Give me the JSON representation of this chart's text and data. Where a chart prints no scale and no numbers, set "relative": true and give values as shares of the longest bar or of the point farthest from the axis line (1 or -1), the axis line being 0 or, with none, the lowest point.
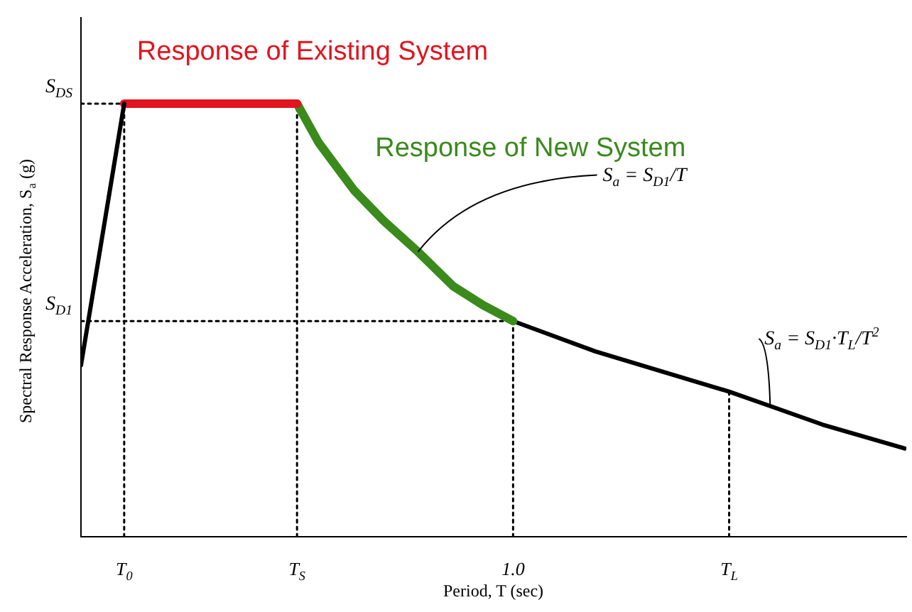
{
  "chart_data": {
    "type": "line",
    "relative": true,
    "xlabel": "Period, T (sec)",
    "ylabel": "Spectral Response Acceleration, S$_{a}$ (g)",
    "xlim": [
      0,
      1.91
    ],
    "xticks": [
      {
        "value": 0.1,
        "label": "T$_{0}$"
      },
      {
        "value": 0.5,
        "label": "T$_{S}$"
      },
      {
        "value": 1,
        "label": "1.0"
      },
      {
        "value": 1.5,
        "label": "T$_{L}$"
      }
    ],
    "series": [
      {
        "color": "#000000",
        "x": [
          0,
          0.1
        ],
        "values": [
          0.396,
          1
        ]
      },
      {
        "name": "Response of Existing System",
        "color": "#e0151f",
        "x": [
          0.1,
          0.5
        ],
        "values": [
          1,
          1
        ]
      },
      {
        "name": "Response of New System",
        "color": "#3a8a1c",
        "x": [
          0.5,
          0.55,
          0.632,
          0.7,
          0.78,
          0.862,
          0.93,
          1
        ],
        "values": [
          1,
          0.91,
          0.8,
          0.73,
          0.658,
          0.578,
          0.535,
          0.498
        ]
      },
      {
        "color": "#000000",
        "x": [
          1,
          1.19,
          1.5,
          1.6,
          1.716,
          1.906
        ],
        "values": [
          0.498,
          0.428,
          0.335,
          0.3,
          0.259,
          0.204
        ]
      },
      {
        "color": "#000000",
        "line_style": "dotted",
        "x": [
          0,
          0.1
        ],
        "values": [
          1,
          1
        ]
      },
      {
        "color": "#000000",
        "line_style": "dotted",
        "x": [
          0,
          1
        ],
        "values": [
          0.498,
          0.498
        ]
      },
      {
        "color": "#000000",
        "line_style": "dotted",
        "x": [
          0.1,
          0.1
        ],
        "values": [
          0,
          1
        ]
      },
      {
        "color": "#000000",
        "line_style": "dotted",
        "x": [
          0.5,
          0.5
        ],
        "values": [
          0,
          1
        ]
      },
      {
        "color": "#000000",
        "line_style": "dotted",
        "x": [
          1,
          1
        ],
        "values": [
          0,
          0.498
        ]
      },
      {
        "color": "#000000",
        "line_style": "dotted",
        "x": [
          1.5,
          1.5
        ],
        "values": [
          0,
          0.335
        ]
      }
    ],
    "annotations": [
      {
        "text": "S$_{DS}$",
        "x": 0,
        "y": 1
      },
      {
        "text": "S$_{D1}$",
        "x": 0,
        "y": 0.498
      },
      {
        "text": "S$_{a}$ = S$_{D1}$/T",
        "x": 0.78,
        "y": 0.658
      },
      {
        "text": "S$_{a}$ = S$_{D1}$·T$_{L}$/T$^{2}$",
        "x": 1.595,
        "y": 0.3
      }
    ]
  }
}
